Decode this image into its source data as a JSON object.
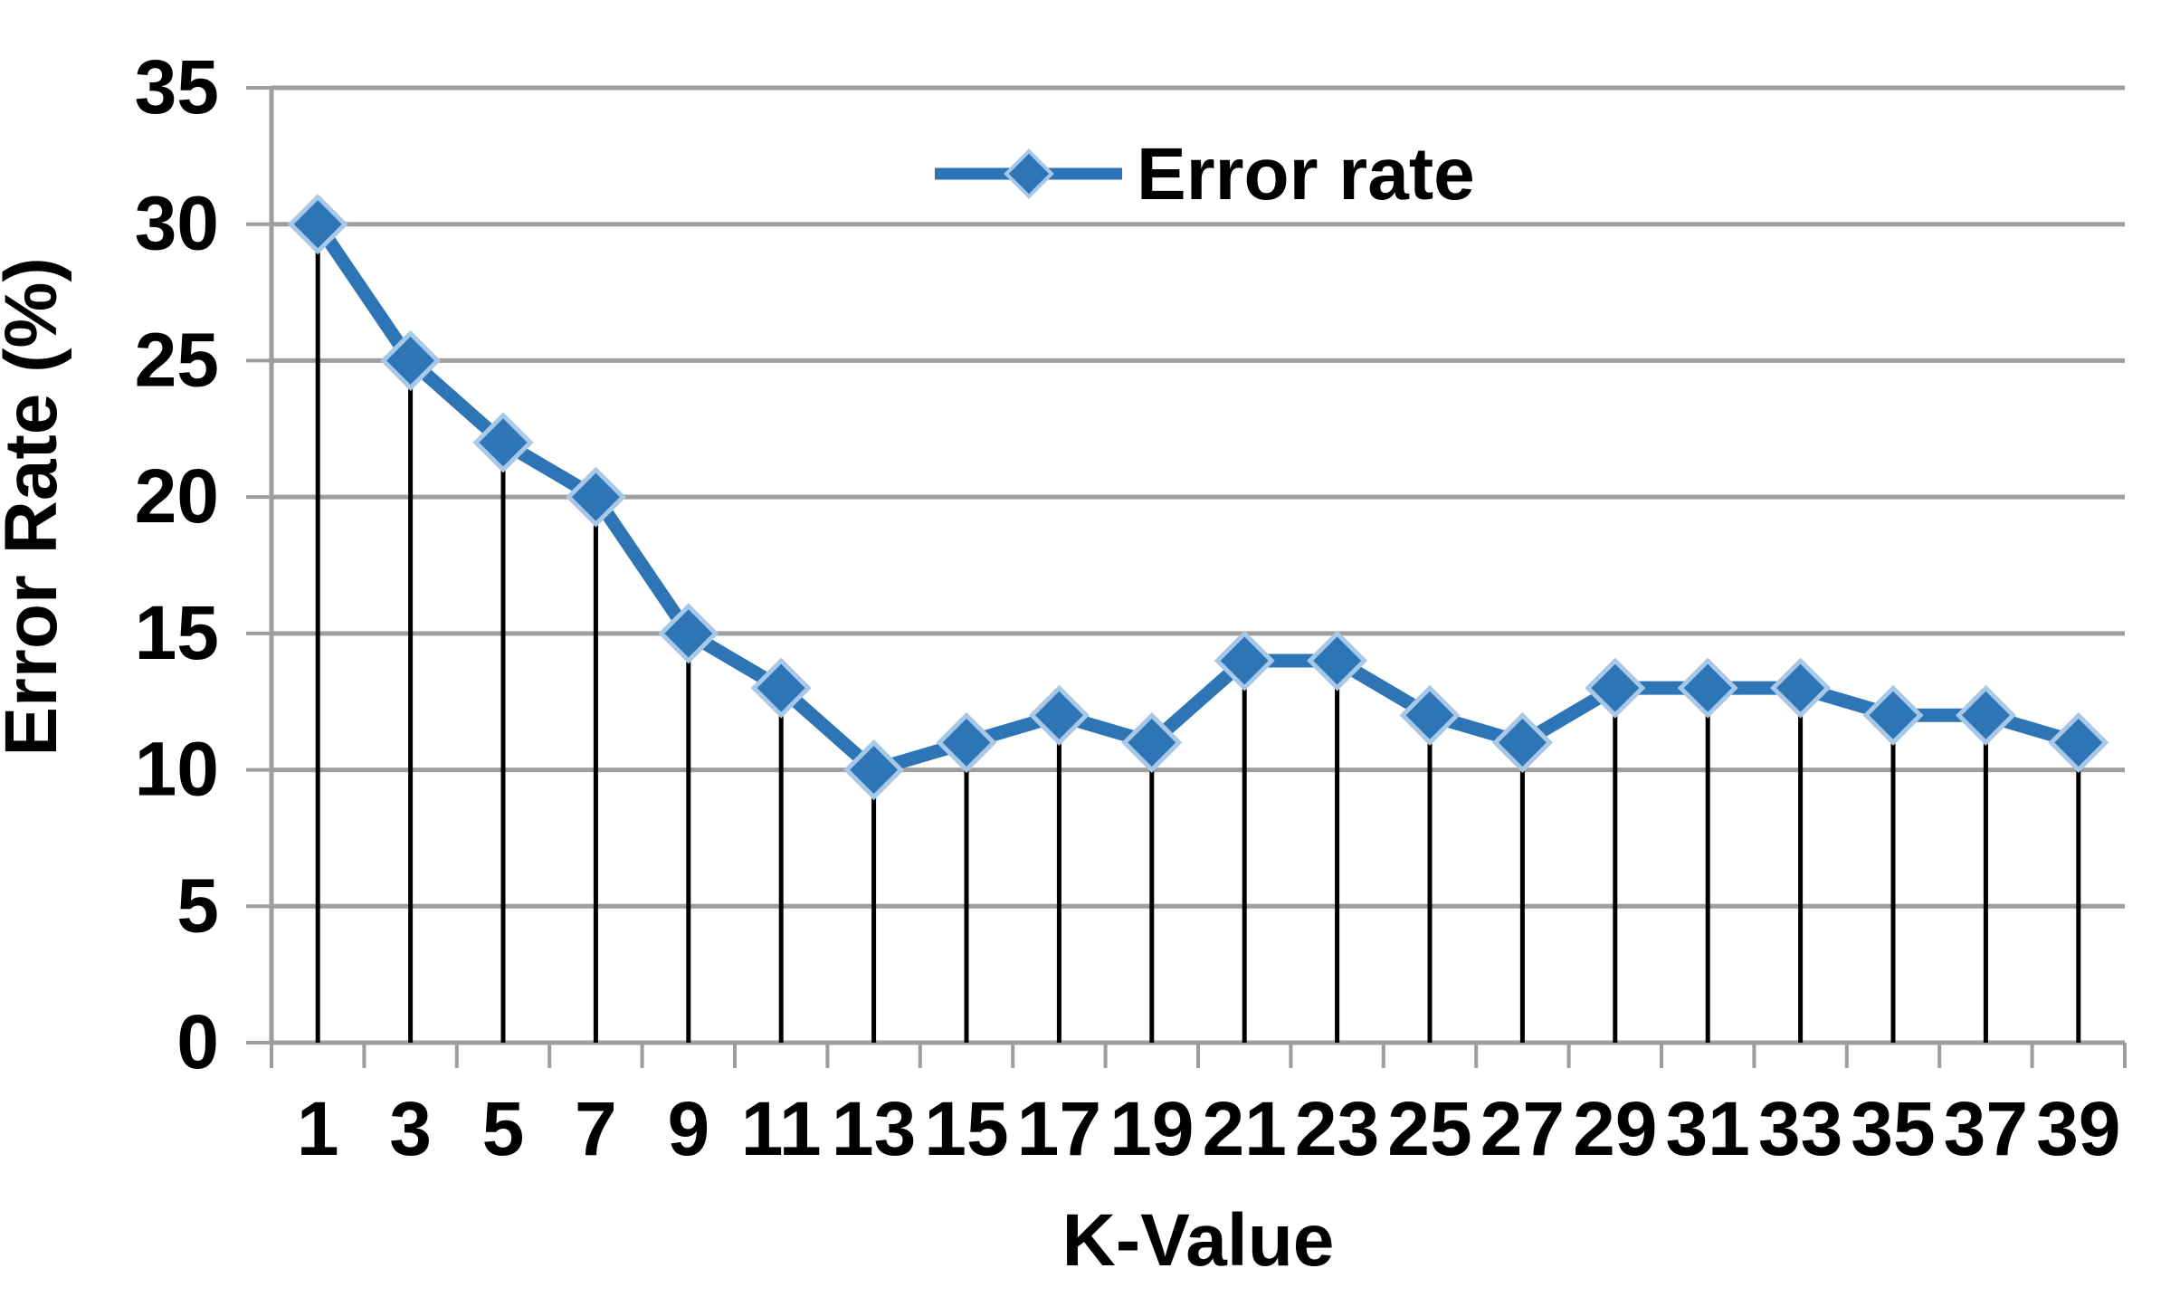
{
  "chart_data": {
    "type": "line",
    "title": "",
    "xlabel": "K-Value",
    "ylabel": "Error Rate (%)",
    "x": [
      1,
      3,
      5,
      7,
      9,
      11,
      13,
      15,
      17,
      19,
      21,
      23,
      25,
      27,
      29,
      31,
      33,
      35,
      37,
      39
    ],
    "series": [
      {
        "name": "Error rate",
        "values": [
          30,
          25,
          22,
          20,
          15,
          13,
          10,
          11,
          12,
          11,
          14,
          14,
          12,
          11,
          13,
          13,
          13,
          12,
          12,
          11
        ]
      }
    ],
    "ylim": [
      0,
      35
    ],
    "ytick_step": 5,
    "grid": "horizontal",
    "legend_position": "top-center-inside",
    "marker": "diamond",
    "droplines": true,
    "colors": {
      "series": "#2E75B6",
      "marker_border": "#A8C8E8",
      "grid": "#9E9E9E",
      "axis": "#9E9E9E",
      "droplines": "#000000",
      "text": "#000000"
    }
  }
}
